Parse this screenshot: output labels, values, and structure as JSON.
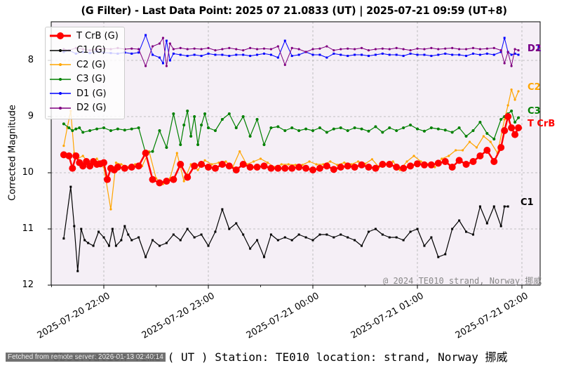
{
  "title": "(G Filter) - Last Data Point: 2025 07 21.0833 (UT) | 2025-07-21 09:59 (UT+8)",
  "xlabel": "Observation Time ( UT )  Station: TE010 location: strand,  Norway 挪威",
  "ylabel": "Corrected Magnitude",
  "copyright": "@ 2024 TE010 strand,  Norway 挪威",
  "fetched_badge": "Fetched from remote server: 2026-01-13 02:40:14",
  "colors": {
    "plot_bg": "#f5eff6",
    "grid": "#b0b0b0"
  },
  "chart_data": {
    "type": "line",
    "title": "(G Filter) - Last Data Point: 2025 07 21.0833 (UT) | 2025-07-21 09:59 (UT+8)",
    "xlabel": "Observation Time ( UT )  Station: TE010 location: strand,  Norway 挪威",
    "ylabel": "Corrected Magnitude",
    "y_inverted": true,
    "ylim": [
      12,
      7.3
    ],
    "yticks": [
      8,
      9,
      10,
      11,
      12
    ],
    "xticks": [
      "2025-07-20 22:00",
      "2025-07-20 23:00",
      "2025-07-21 00:00",
      "2025-07-21 01:00",
      "2025-07-21 02:00"
    ],
    "x_unit": "minutes since 2025-07-20 21:00 UT",
    "xlim": [
      30,
      308
    ],
    "grid": true,
    "legend_position": "upper left",
    "series": [
      {
        "name": "T CrB (G)",
        "label": "T CrB",
        "color": "#ff0000",
        "marker": "circle-large",
        "line_width": 2.5,
        "x": [
          37,
          40,
          42,
          44,
          46,
          48,
          50,
          52,
          54,
          56,
          58,
          60,
          62,
          64,
          66,
          68,
          72,
          76,
          80,
          84,
          88,
          92,
          96,
          100,
          104,
          108,
          112,
          116,
          120,
          124,
          128,
          132,
          136,
          140,
          144,
          148,
          152,
          156,
          160,
          164,
          168,
          172,
          176,
          180,
          184,
          188,
          192,
          196,
          200,
          204,
          208,
          212,
          216,
          220,
          224,
          228,
          232,
          236,
          240,
          244,
          248,
          252,
          256,
          260,
          264,
          268,
          272,
          276,
          280,
          284,
          288,
          290,
          292,
          294,
          296,
          298
        ],
        "y": [
          9.68,
          9.7,
          9.92,
          9.7,
          9.82,
          9.88,
          9.8,
          9.88,
          9.8,
          9.85,
          9.84,
          9.82,
          10.12,
          9.92,
          9.95,
          9.9,
          9.92,
          9.9,
          9.88,
          9.65,
          10.12,
          10.18,
          10.15,
          10.12,
          9.85,
          10.08,
          9.88,
          9.85,
          9.9,
          9.92,
          9.85,
          9.88,
          9.95,
          9.85,
          9.9,
          9.9,
          9.88,
          9.92,
          9.92,
          9.92,
          9.92,
          9.9,
          9.92,
          9.95,
          9.92,
          9.88,
          9.94,
          9.9,
          9.88,
          9.9,
          9.86,
          9.9,
          9.92,
          9.85,
          9.85,
          9.9,
          9.92,
          9.88,
          9.84,
          9.86,
          9.86,
          9.83,
          9.8,
          9.9,
          9.78,
          9.85,
          9.8,
          9.7,
          9.6,
          9.8,
          9.55,
          9.25,
          9.0,
          9.2,
          9.32,
          9.2
        ]
      },
      {
        "name": "C1 (G)",
        "label": "C1",
        "color": "#000000",
        "marker": "square-small",
        "line_width": 1.2,
        "x": [
          37,
          41,
          43,
          45,
          47,
          49,
          51,
          54,
          57,
          60,
          63,
          65,
          67,
          70,
          72,
          74,
          76,
          80,
          84,
          88,
          92,
          96,
          100,
          104,
          108,
          112,
          116,
          120,
          124,
          128,
          132,
          136,
          140,
          144,
          148,
          152,
          156,
          160,
          164,
          168,
          172,
          176,
          180,
          184,
          188,
          192,
          196,
          200,
          204,
          208,
          212,
          216,
          220,
          224,
          228,
          232,
          236,
          240,
          244,
          248,
          252,
          256,
          260,
          264,
          268,
          272,
          276,
          280,
          284,
          288,
          290,
          292
        ],
        "y": [
          11.17,
          10.25,
          10.95,
          11.75,
          11.0,
          11.2,
          11.25,
          11.3,
          11.05,
          11.15,
          11.3,
          11.0,
          11.3,
          11.2,
          10.95,
          11.1,
          11.2,
          11.15,
          11.5,
          11.2,
          11.3,
          11.25,
          11.1,
          11.2,
          11.0,
          11.15,
          11.1,
          11.3,
          11.05,
          10.65,
          11.0,
          10.9,
          11.1,
          11.35,
          11.2,
          11.5,
          11.1,
          11.2,
          11.15,
          11.2,
          11.1,
          11.15,
          11.2,
          11.1,
          11.1,
          11.15,
          11.1,
          11.15,
          11.2,
          11.3,
          11.05,
          11.0,
          11.1,
          11.15,
          11.15,
          11.2,
          11.05,
          11.0,
          11.3,
          11.15,
          11.5,
          11.45,
          11.0,
          10.85,
          11.05,
          11.1,
          10.6,
          10.9,
          10.6,
          10.95,
          10.6,
          10.6
        ]
      },
      {
        "name": "C2 (G)",
        "label": "C2",
        "color": "#ffa500",
        "marker": "dot-small",
        "line_width": 1.2,
        "x": [
          37,
          39,
          41,
          43,
          45,
          48,
          52,
          56,
          60,
          64,
          67,
          70,
          74,
          78,
          82,
          86,
          90,
          94,
          98,
          102,
          106,
          110,
          114,
          118,
          122,
          126,
          130,
          134,
          138,
          142,
          146,
          150,
          154,
          158,
          162,
          166,
          170,
          174,
          178,
          182,
          186,
          190,
          194,
          198,
          202,
          206,
          210,
          214,
          218,
          222,
          226,
          230,
          234,
          238,
          242,
          246,
          250,
          254,
          258,
          262,
          266,
          270,
          274,
          278,
          282,
          286,
          290,
          292,
          294,
          296,
          298
        ],
        "y": [
          9.52,
          9.2,
          8.9,
          9.65,
          9.75,
          9.7,
          9.85,
          9.75,
          9.9,
          10.65,
          9.82,
          9.85,
          9.9,
          9.85,
          9.88,
          9.62,
          10.1,
          10.2,
          10.1,
          9.65,
          10.15,
          9.85,
          9.95,
          9.78,
          9.85,
          9.82,
          9.8,
          9.9,
          9.62,
          9.85,
          9.8,
          9.75,
          9.82,
          9.9,
          9.85,
          9.85,
          9.86,
          9.86,
          9.8,
          9.85,
          9.85,
          9.8,
          9.86,
          9.82,
          9.85,
          9.8,
          9.84,
          9.76,
          9.9,
          9.85,
          9.8,
          9.95,
          9.8,
          9.7,
          9.8,
          9.85,
          9.9,
          9.75,
          9.7,
          9.6,
          9.6,
          9.45,
          9.55,
          9.35,
          9.45,
          9.65,
          9.05,
          8.8,
          8.52,
          8.7,
          8.55
        ]
      },
      {
        "name": "C3 (G)",
        "label": "C3",
        "color": "#008000",
        "marker": "diamond-small",
        "line_width": 1.2,
        "x": [
          37,
          40,
          42,
          44,
          46,
          48,
          52,
          56,
          60,
          64,
          68,
          72,
          76,
          80,
          84,
          88,
          92,
          96,
          100,
          104,
          106,
          108,
          110,
          112,
          114,
          116,
          118,
          120,
          124,
          128,
          132,
          136,
          140,
          144,
          148,
          152,
          156,
          160,
          164,
          168,
          172,
          176,
          180,
          184,
          188,
          192,
          196,
          200,
          204,
          208,
          212,
          216,
          220,
          224,
          228,
          232,
          236,
          240,
          244,
          248,
          252,
          256,
          260,
          264,
          268,
          272,
          276,
          280,
          284,
          288,
          290,
          292,
          294,
          296,
          298
        ],
        "y": [
          9.13,
          9.2,
          9.25,
          9.22,
          9.2,
          9.28,
          9.25,
          9.22,
          9.2,
          9.25,
          9.22,
          9.24,
          9.22,
          9.2,
          9.65,
          9.62,
          9.25,
          9.55,
          8.95,
          9.5,
          9.15,
          8.9,
          9.35,
          9.0,
          9.5,
          9.15,
          8.95,
          9.2,
          9.25,
          9.05,
          8.95,
          9.2,
          9.0,
          9.35,
          9.05,
          9.5,
          9.2,
          9.18,
          9.25,
          9.2,
          9.25,
          9.22,
          9.25,
          9.2,
          9.28,
          9.22,
          9.2,
          9.25,
          9.2,
          9.22,
          9.26,
          9.18,
          9.28,
          9.2,
          9.25,
          9.2,
          9.15,
          9.22,
          9.26,
          9.2,
          9.22,
          9.24,
          9.28,
          9.2,
          9.35,
          9.25,
          9.1,
          9.3,
          9.4,
          9.05,
          9.0,
          8.95,
          8.9,
          9.1,
          9.02
        ]
      },
      {
        "name": "D1 (G)",
        "label": "D1",
        "color": "#0000ff",
        "marker": "square-small",
        "line_width": 1.0,
        "x": [
          37,
          40,
          44,
          48,
          52,
          56,
          60,
          64,
          68,
          72,
          76,
          80,
          84,
          88,
          92,
          94,
          96,
          98,
          100,
          104,
          108,
          112,
          116,
          120,
          124,
          128,
          132,
          136,
          140,
          144,
          148,
          152,
          156,
          160,
          164,
          168,
          172,
          176,
          180,
          184,
          188,
          192,
          196,
          200,
          204,
          208,
          212,
          216,
          220,
          224,
          228,
          232,
          236,
          240,
          244,
          248,
          252,
          256,
          260,
          264,
          268,
          272,
          276,
          280,
          284,
          288,
          290,
          292,
          294,
          296,
          298
        ],
        "y": [
          7.85,
          7.82,
          7.88,
          7.85,
          7.87,
          7.84,
          7.86,
          7.87,
          7.88,
          7.86,
          7.88,
          7.86,
          7.55,
          7.9,
          7.95,
          8.05,
          7.65,
          8.0,
          7.88,
          7.9,
          7.92,
          7.9,
          7.92,
          7.88,
          7.9,
          7.9,
          7.92,
          7.9,
          7.9,
          7.92,
          7.9,
          7.88,
          7.9,
          7.95,
          7.65,
          7.92,
          7.9,
          7.85,
          7.9,
          7.9,
          7.95,
          7.88,
          7.9,
          7.92,
          7.9,
          7.9,
          7.92,
          7.9,
          7.88,
          7.9,
          7.9,
          7.92,
          7.88,
          7.9,
          7.9,
          7.92,
          7.9,
          7.88,
          7.9,
          7.9,
          7.92,
          7.88,
          7.9,
          7.88,
          7.9,
          7.85,
          7.6,
          7.85,
          7.9,
          7.88,
          7.9
        ]
      },
      {
        "name": "D2 (G)",
        "label": "D2",
        "color": "#800080",
        "marker": "dot-small",
        "line_width": 1.0,
        "x": [
          37,
          40,
          44,
          48,
          52,
          56,
          60,
          64,
          68,
          72,
          76,
          80,
          84,
          88,
          92,
          94,
          96,
          98,
          100,
          104,
          108,
          112,
          116,
          120,
          124,
          128,
          132,
          136,
          140,
          144,
          148,
          152,
          156,
          160,
          164,
          168,
          172,
          176,
          180,
          184,
          188,
          192,
          196,
          200,
          204,
          208,
          212,
          216,
          220,
          224,
          228,
          232,
          236,
          240,
          244,
          248,
          252,
          256,
          260,
          264,
          268,
          272,
          276,
          280,
          284,
          288,
          290,
          292,
          294,
          296,
          298
        ],
        "y": [
          7.8,
          7.82,
          7.78,
          7.8,
          7.82,
          7.8,
          7.79,
          7.8,
          7.78,
          7.8,
          7.79,
          7.8,
          8.1,
          7.75,
          7.7,
          7.6,
          8.1,
          7.7,
          7.8,
          7.78,
          7.8,
          7.79,
          7.8,
          7.78,
          7.82,
          7.8,
          7.78,
          7.8,
          7.82,
          7.78,
          7.8,
          7.79,
          7.8,
          7.75,
          8.08,
          7.78,
          7.8,
          7.85,
          7.8,
          7.79,
          7.75,
          7.82,
          7.8,
          7.79,
          7.8,
          7.78,
          7.82,
          7.8,
          7.79,
          7.8,
          7.78,
          7.8,
          7.82,
          7.79,
          7.8,
          7.78,
          7.8,
          7.79,
          7.78,
          7.8,
          7.8,
          7.78,
          7.8,
          7.79,
          7.78,
          7.82,
          8.05,
          7.85,
          8.1,
          7.8,
          7.82
        ]
      }
    ]
  }
}
